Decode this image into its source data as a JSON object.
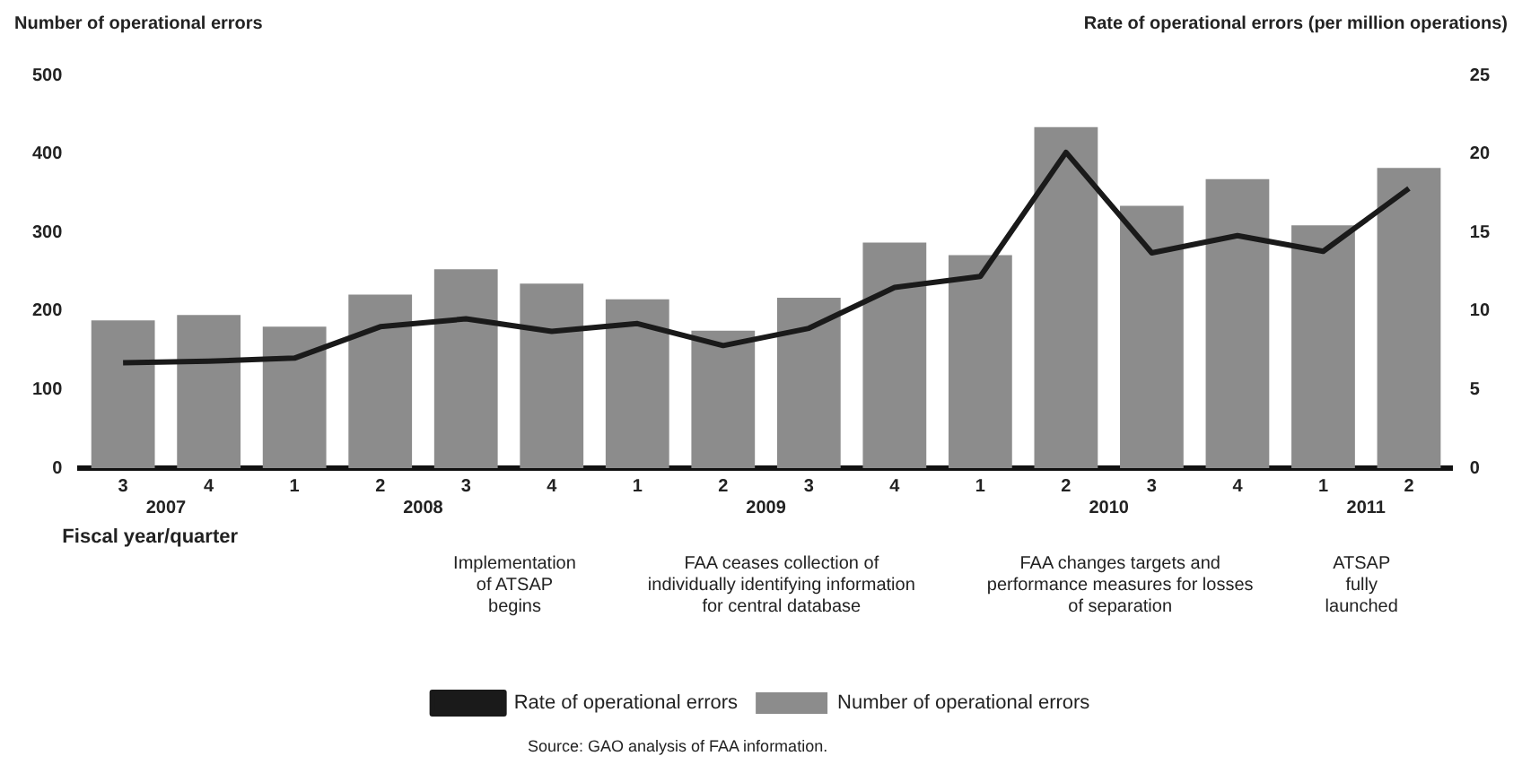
{
  "chart_data": {
    "type": "bar",
    "ylabel": "Number of operational errors",
    "y2label": "Rate of operational errors (per million operations)",
    "xlabel": "Fiscal year/quarter",
    "categories": [
      "3",
      "4",
      "1",
      "2",
      "3",
      "4",
      "1",
      "2",
      "3",
      "4",
      "1",
      "2",
      "3",
      "4",
      "1",
      "2"
    ],
    "series": [
      {
        "name": "Number of operational errors",
        "color": "#8c8c8c",
        "values": [
          188,
          195,
          180,
          221,
          253,
          235,
          215,
          175,
          217,
          287,
          271,
          434,
          334,
          368,
          309,
          382
        ]
      },
      {
        "name": "Rate of operational errors",
        "type": "line",
        "axis": "y2",
        "color": "#1a1a1a",
        "values": [
          6.7,
          6.8,
          7.0,
          9.0,
          9.5,
          8.7,
          9.2,
          7.8,
          8.9,
          11.5,
          12.2,
          20.1,
          13.7,
          14.8,
          13.8,
          17.8
        ]
      }
    ],
    "ylim": [
      0,
      500
    ],
    "yticks": [
      0,
      100,
      200,
      300,
      400,
      500
    ],
    "y2lim": [
      0,
      25
    ],
    "y2ticks": [
      0,
      5,
      10,
      15,
      20,
      25
    ],
    "grid": false,
    "legend": "bottom",
    "marker": "none",
    "line_style": "solid",
    "annotations": [
      "2007",
      "2008",
      "2009",
      "2010",
      "2011",
      "Implementation of ATSAP begins",
      "FAA ceases collection of individually identifying information for central database",
      "FAA changes targets and performance measures for losses of separation",
      "ATSAP fully launched",
      "Source: GAO analysis of FAA information."
    ]
  }
}
